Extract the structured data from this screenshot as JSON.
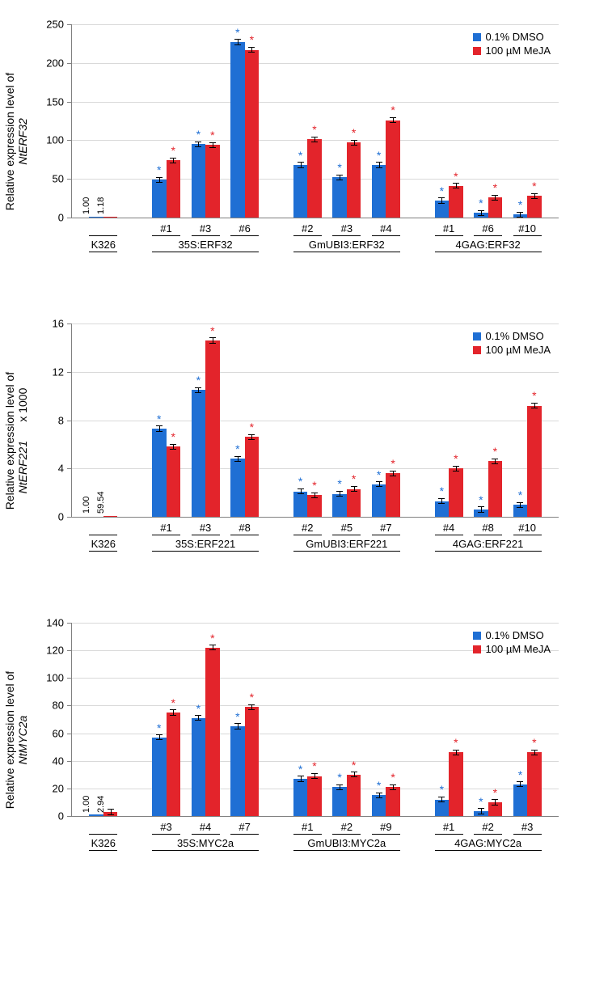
{
  "colors": {
    "dmso": "#1f6fd4",
    "meja": "#e3242b",
    "grid": "#d9d9d9",
    "axis": "#808080",
    "bg": "#ffffff"
  },
  "legend": {
    "dmso": "0.1% DMSO",
    "meja": "100 µM MeJA"
  },
  "charts": [
    {
      "ylabel_prefix": "Relative expression level of",
      "gene": "NtERF32",
      "ymax": 250,
      "ystep": 50,
      "groups": [
        {
          "super": "K326",
          "subs": [
            {
              "label": "",
              "dmso": 1.0,
              "meja": 1.18,
              "no_star": true,
              "show_vals": true
            }
          ]
        },
        {
          "super": "35S:ERF32",
          "subs": [
            {
              "label": "#1",
              "dmso": 49,
              "meja": 74
            },
            {
              "label": "#3",
              "dmso": 95,
              "meja": 94
            },
            {
              "label": "#6",
              "dmso": 227,
              "meja": 217
            }
          ]
        },
        {
          "super": "GmUBI3:ERF32",
          "subs": [
            {
              "label": "#2",
              "dmso": 68,
              "meja": 101
            },
            {
              "label": "#3",
              "dmso": 52,
              "meja": 97
            },
            {
              "label": "#4",
              "dmso": 68,
              "meja": 126
            }
          ]
        },
        {
          "super": "4GAG:ERF32",
          "subs": [
            {
              "label": "#1",
              "dmso": 22,
              "meja": 41
            },
            {
              "label": "#6",
              "dmso": 6,
              "meja": 26
            },
            {
              "label": "#10",
              "dmso": 4,
              "meja": 28
            }
          ]
        }
      ]
    },
    {
      "ylabel_prefix": "Relative expression level of",
      "gene": "NtERF221",
      "ylabel_suffix": "x 1000",
      "ymax": 16,
      "ystep": 4,
      "groups": [
        {
          "super": "K326",
          "subs": [
            {
              "label": "",
              "dmso": 0.001,
              "meja": 0.06,
              "no_star": true,
              "show_vals": true,
              "val_d": "1.00",
              "val_m": "59.54"
            }
          ]
        },
        {
          "super": "35S:ERF221",
          "subs": [
            {
              "label": "#1",
              "dmso": 7.3,
              "meja": 5.8
            },
            {
              "label": "#3",
              "dmso": 10.5,
              "meja": 14.6
            },
            {
              "label": "#8",
              "dmso": 4.8,
              "meja": 6.6
            }
          ]
        },
        {
          "super": "GmUBI3:ERF221",
          "subs": [
            {
              "label": "#2",
              "dmso": 2.1,
              "meja": 1.8
            },
            {
              "label": "#5",
              "dmso": 1.9,
              "meja": 2.3
            },
            {
              "label": "#7",
              "dmso": 2.7,
              "meja": 3.6
            }
          ]
        },
        {
          "super": "4GAG:ERF221",
          "subs": [
            {
              "label": "#4",
              "dmso": 1.3,
              "meja": 4.0
            },
            {
              "label": "#8",
              "dmso": 0.6,
              "meja": 4.6
            },
            {
              "label": "#10",
              "dmso": 1.0,
              "meja": 9.2
            }
          ]
        }
      ]
    },
    {
      "ylabel_prefix": "Relative expression level of",
      "gene": "NtMYC2a",
      "ymax": 140,
      "ystep": 20,
      "groups": [
        {
          "super": "K326",
          "subs": [
            {
              "label": "",
              "dmso": 1.0,
              "meja": 2.94,
              "no_star": true,
              "show_vals": true
            }
          ]
        },
        {
          "super": "35S:MYC2a",
          "subs": [
            {
              "label": "#3",
              "dmso": 57,
              "meja": 75
            },
            {
              "label": "#4",
              "dmso": 71,
              "meja": 122
            },
            {
              "label": "#7",
              "dmso": 65,
              "meja": 79
            }
          ]
        },
        {
          "super": "GmUBI3:MYC2a",
          "subs": [
            {
              "label": "#1",
              "dmso": 27,
              "meja": 29
            },
            {
              "label": "#2",
              "dmso": 21,
              "meja": 30
            },
            {
              "label": "#9",
              "dmso": 15,
              "meja": 21
            }
          ]
        },
        {
          "super": "4GAG:MYC2a",
          "subs": [
            {
              "label": "#1",
              "dmso": 12,
              "meja": 46
            },
            {
              "label": "#2",
              "dmso": 3.5,
              "meja": 10
            },
            {
              "label": "#3",
              "dmso": 23,
              "meja": 46
            }
          ]
        }
      ]
    }
  ]
}
